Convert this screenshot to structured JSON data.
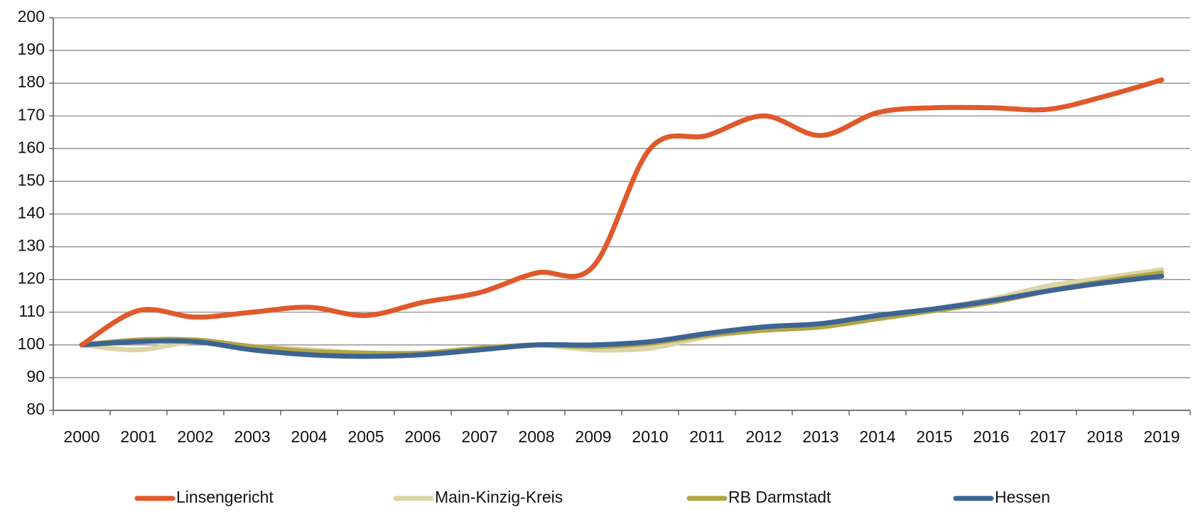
{
  "chart_data": {
    "type": "line",
    "categories": [
      "2000",
      "2001",
      "2002",
      "2003",
      "2004",
      "2005",
      "2006",
      "2007",
      "2008",
      "2009",
      "2010",
      "2011",
      "2012",
      "2013",
      "2014",
      "2015",
      "2016",
      "2017",
      "2018",
      "2019"
    ],
    "series": [
      {
        "name": "Linsengericht",
        "color": "#e0592a",
        "values": [
          100,
          110.5,
          108.5,
          110,
          111.5,
          109,
          113,
          116,
          122,
          124,
          160,
          164,
          170,
          164,
          171,
          172.5,
          172.5,
          172,
          176,
          181
        ]
      },
      {
        "name": "Main-Kinzig-Kreis",
        "color": "#dbd5a6",
        "values": [
          100,
          98.5,
          101,
          99.5,
          98.5,
          97.5,
          97.5,
          98.5,
          100,
          98.5,
          99,
          102.5,
          104.5,
          105.5,
          108,
          111,
          114,
          118,
          120.5,
          123
        ]
      },
      {
        "name": "RB Darmstadt",
        "color": "#b3a445",
        "values": [
          100,
          101.5,
          101.5,
          99.5,
          98,
          97.5,
          97.5,
          99,
          100,
          99.5,
          100.5,
          103,
          104.5,
          105.5,
          108,
          110.5,
          113,
          116.5,
          119.5,
          122
        ]
      },
      {
        "name": "Hessen",
        "color": "#3c6494",
        "values": [
          100,
          101,
          101,
          98.5,
          97,
          96.5,
          97,
          98.5,
          100,
          100,
          101,
          103.5,
          105.5,
          106.5,
          109,
          111,
          113.5,
          116.5,
          119,
          121
        ]
      }
    ],
    "ylim": [
      80,
      200
    ],
    "yticks": [
      80,
      90,
      100,
      110,
      120,
      130,
      140,
      150,
      160,
      170,
      180,
      190,
      200
    ],
    "grid": true
  }
}
